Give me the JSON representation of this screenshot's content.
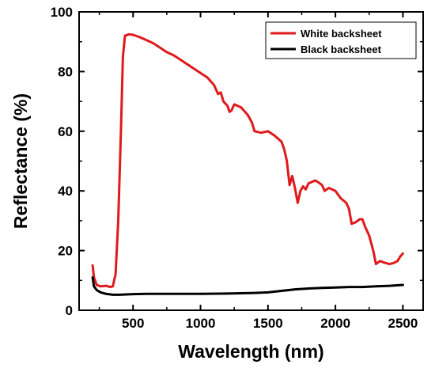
{
  "chart_data": {
    "type": "line",
    "xlabel": "Wavelength  (nm)",
    "ylabel": "Reflectance  (%)",
    "xlim": [
      100,
      2650
    ],
    "ylim": [
      0,
      100
    ],
    "xticks": [
      500,
      1000,
      1500,
      2000,
      2500
    ],
    "yticks": [
      0,
      20,
      40,
      60,
      80,
      100
    ],
    "grid": false,
    "legend_position": "top-right",
    "series": [
      {
        "name": "White backsheet",
        "color": "#e0191b",
        "points": [
          [
            200,
            15
          ],
          [
            210,
            11
          ],
          [
            230,
            8.5
          ],
          [
            260,
            8
          ],
          [
            300,
            8.2
          ],
          [
            330,
            7.8
          ],
          [
            350,
            8
          ],
          [
            370,
            12
          ],
          [
            390,
            30
          ],
          [
            410,
            60
          ],
          [
            425,
            85
          ],
          [
            440,
            92
          ],
          [
            470,
            92.5
          ],
          [
            500,
            92.3
          ],
          [
            550,
            91.5
          ],
          [
            600,
            90.5
          ],
          [
            650,
            89.5
          ],
          [
            700,
            88
          ],
          [
            750,
            86.5
          ],
          [
            800,
            85.5
          ],
          [
            850,
            84
          ],
          [
            900,
            82.5
          ],
          [
            950,
            81
          ],
          [
            1000,
            79.5
          ],
          [
            1050,
            78
          ],
          [
            1100,
            75.5
          ],
          [
            1130,
            72.5
          ],
          [
            1150,
            73
          ],
          [
            1170,
            70
          ],
          [
            1200,
            68.5
          ],
          [
            1215,
            66.5
          ],
          [
            1230,
            67
          ],
          [
            1250,
            69
          ],
          [
            1300,
            68
          ],
          [
            1350,
            65.5
          ],
          [
            1380,
            63
          ],
          [
            1400,
            60
          ],
          [
            1450,
            59.5
          ],
          [
            1500,
            60
          ],
          [
            1550,
            58.5
          ],
          [
            1600,
            56.5
          ],
          [
            1620,
            54
          ],
          [
            1640,
            50
          ],
          [
            1660,
            42
          ],
          [
            1680,
            45
          ],
          [
            1700,
            41
          ],
          [
            1720,
            36
          ],
          [
            1740,
            40
          ],
          [
            1760,
            41.5
          ],
          [
            1780,
            40.5
          ],
          [
            1800,
            42.5
          ],
          [
            1850,
            43.5
          ],
          [
            1870,
            43
          ],
          [
            1900,
            42
          ],
          [
            1920,
            40
          ],
          [
            1950,
            41
          ],
          [
            2000,
            40
          ],
          [
            2040,
            37.5
          ],
          [
            2080,
            36
          ],
          [
            2100,
            34
          ],
          [
            2120,
            29
          ],
          [
            2150,
            29.5
          ],
          [
            2180,
            30.5
          ],
          [
            2200,
            30.5
          ],
          [
            2220,
            28
          ],
          [
            2250,
            25
          ],
          [
            2280,
            20
          ],
          [
            2300,
            15.5
          ],
          [
            2330,
            16.5
          ],
          [
            2360,
            16
          ],
          [
            2400,
            15.5
          ],
          [
            2430,
            15.8
          ],
          [
            2460,
            16.5
          ],
          [
            2480,
            18
          ],
          [
            2500,
            19
          ]
        ]
      },
      {
        "name": "Black backsheet",
        "color": "#000000",
        "points": [
          [
            200,
            11
          ],
          [
            210,
            8
          ],
          [
            230,
            6.8
          ],
          [
            260,
            6
          ],
          [
            300,
            5.5
          ],
          [
            350,
            5.2
          ],
          [
            400,
            5.2
          ],
          [
            500,
            5.4
          ],
          [
            600,
            5.5
          ],
          [
            800,
            5.5
          ],
          [
            1000,
            5.5
          ],
          [
            1200,
            5.6
          ],
          [
            1400,
            5.8
          ],
          [
            1500,
            6
          ],
          [
            1600,
            6.5
          ],
          [
            1700,
            7
          ],
          [
            1800,
            7.3
          ],
          [
            1900,
            7.5
          ],
          [
            2000,
            7.6
          ],
          [
            2100,
            7.8
          ],
          [
            2200,
            7.8
          ],
          [
            2300,
            8
          ],
          [
            2400,
            8.2
          ],
          [
            2500,
            8.5
          ]
        ]
      }
    ]
  }
}
